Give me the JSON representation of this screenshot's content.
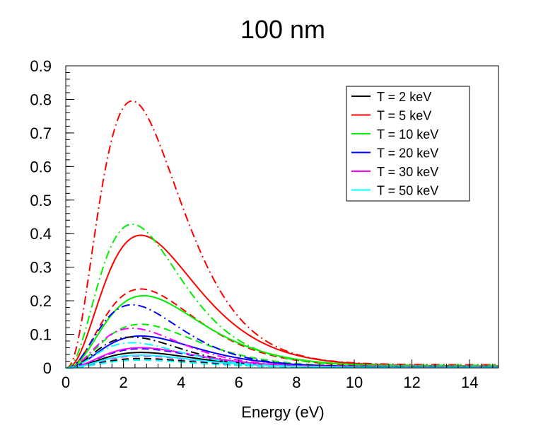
{
  "chart_data": {
    "type": "line",
    "title": "100 nm",
    "xlabel": "Energy (eV)",
    "ylabel": "",
    "xlim": [
      0,
      15
    ],
    "ylim": [
      0,
      0.9
    ],
    "x_ticks": [
      0,
      2,
      4,
      6,
      8,
      10,
      12,
      14
    ],
    "x_tick_labels": [
      "0",
      "2",
      "4",
      "6",
      "8",
      "10",
      "12",
      "14"
    ],
    "y_ticks": [
      0,
      0.1,
      0.2,
      0.3,
      0.4,
      0.5,
      0.6,
      0.7,
      0.8,
      0.9
    ],
    "y_tick_labels": [
      "0",
      "0.1",
      "0.2",
      "0.3",
      "0.4",
      "0.5",
      "0.6",
      "0.7",
      "0.8",
      "0.9"
    ],
    "legend_position": "top-right",
    "legend": [
      {
        "label": "T = 2 keV",
        "color": "#000000"
      },
      {
        "label": "T = 5 keV",
        "color": "#ff0000"
      },
      {
        "label": "T = 10 keV",
        "color": "#00ee00"
      },
      {
        "label": "T = 20 keV",
        "color": "#0000ff"
      },
      {
        "label": "T = 30 keV",
        "color": "#ff00ff"
      },
      {
        "label": "T = 50 keV",
        "color": "#00ffff"
      }
    ],
    "series": [
      {
        "name": "T = 5 keV",
        "style": "dash-dot",
        "color": "#ff0000",
        "peak_x": 2.3,
        "peak_y": 0.795,
        "tail_y": 0.01
      },
      {
        "name": "T = 5 keV",
        "style": "solid",
        "color": "#ff0000",
        "peak_x": 2.6,
        "peak_y": 0.395,
        "tail_y": 0.006
      },
      {
        "name": "T = 5 keV",
        "style": "dashed",
        "color": "#ff0000",
        "peak_x": 2.6,
        "peak_y": 0.235,
        "tail_y": 0.004
      },
      {
        "name": "T = 10 keV",
        "style": "dash-dot",
        "color": "#00ee00",
        "peak_x": 2.3,
        "peak_y": 0.428,
        "tail_y": 0.008
      },
      {
        "name": "T = 10 keV",
        "style": "solid",
        "color": "#00ee00",
        "peak_x": 2.7,
        "peak_y": 0.215,
        "tail_y": 0.005
      },
      {
        "name": "T = 10 keV",
        "style": "dashed",
        "color": "#00ee00",
        "peak_x": 2.6,
        "peak_y": 0.13,
        "tail_y": 0.003
      },
      {
        "name": "T = 20 keV",
        "style": "dash-dot",
        "color": "#0000ff",
        "peak_x": 2.3,
        "peak_y": 0.188,
        "tail_y": 0.004
      },
      {
        "name": "T = 20 keV",
        "style": "solid",
        "color": "#0000ff",
        "peak_x": 2.6,
        "peak_y": 0.095,
        "tail_y": 0.003
      },
      {
        "name": "T = 20 keV",
        "style": "dashed",
        "color": "#0000ff",
        "peak_x": 2.6,
        "peak_y": 0.057,
        "tail_y": 0.002
      },
      {
        "name": "T = 2 keV",
        "style": "dash-dot",
        "color": "#000000",
        "peak_x": 2.3,
        "peak_y": 0.092,
        "tail_y": 0.002
      },
      {
        "name": "T = 2 keV",
        "style": "solid",
        "color": "#000000",
        "peak_x": 2.6,
        "peak_y": 0.046,
        "tail_y": 0.001
      },
      {
        "name": "T = 2 keV",
        "style": "dashed",
        "color": "#000000",
        "peak_x": 2.6,
        "peak_y": 0.028,
        "tail_y": 0.001
      },
      {
        "name": "T = 30 keV",
        "style": "dash-dot",
        "color": "#ff00ff",
        "peak_x": 2.3,
        "peak_y": 0.118,
        "tail_y": 0.003
      },
      {
        "name": "T = 30 keV",
        "style": "solid",
        "color": "#ff00ff",
        "peak_x": 2.6,
        "peak_y": 0.06,
        "tail_y": 0.002
      },
      {
        "name": "T = 30 keV",
        "style": "dashed",
        "color": "#ff00ff",
        "peak_x": 2.6,
        "peak_y": 0.036,
        "tail_y": 0.001
      },
      {
        "name": "T = 50 keV",
        "style": "dash-dot",
        "color": "#00ffff",
        "peak_x": 2.3,
        "peak_y": 0.075,
        "tail_y": 0.002
      },
      {
        "name": "T = 50 keV",
        "style": "solid",
        "color": "#00ffff",
        "peak_x": 2.6,
        "peak_y": 0.038,
        "tail_y": 0.001
      },
      {
        "name": "T = 50 keV",
        "style": "dashed",
        "color": "#00ffff",
        "peak_x": 2.6,
        "peak_y": 0.023,
        "tail_y": 0.001
      }
    ]
  }
}
